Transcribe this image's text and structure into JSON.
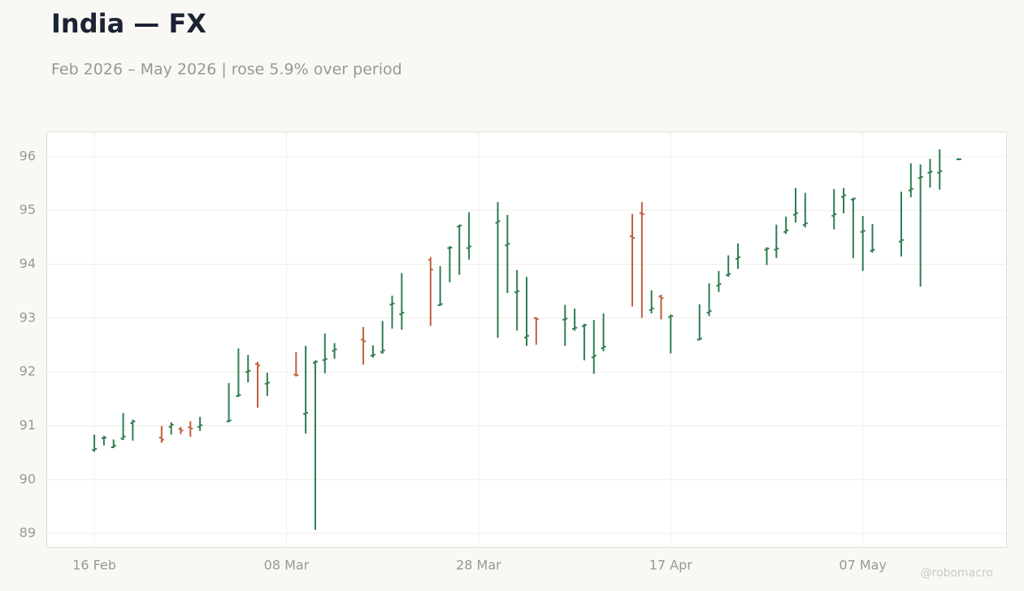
{
  "chart_data": {
    "type": "ohlc",
    "title": "India — FX",
    "subtitle": "Feb 2026 – May 2026 | rose 5.9% over period",
    "watermark": "@robomacro",
    "up_color": "#2e7d4f",
    "down_color": "#c0603e",
    "grid": true,
    "xlim": [
      "2026-02-11",
      "2026-05-22"
    ],
    "xticks": [
      {
        "value": "2026-02-16",
        "label": "16 Feb"
      },
      {
        "value": "2026-03-08",
        "label": "08 Mar"
      },
      {
        "value": "2026-03-28",
        "label": "28 Mar"
      },
      {
        "value": "2026-04-17",
        "label": "17 Apr"
      },
      {
        "value": "2026-05-07",
        "label": "07 May"
      }
    ],
    "ylim": [
      88.73,
      96.45
    ],
    "yticks": [
      89,
      90,
      91,
      92,
      93,
      94,
      95,
      96
    ],
    "x": [
      "2026-02-16",
      "2026-02-17",
      "2026-02-18",
      "2026-02-19",
      "2026-02-20",
      "2026-02-23",
      "2026-02-24",
      "2026-02-25",
      "2026-02-26",
      "2026-02-27",
      "2026-03-02",
      "2026-03-03",
      "2026-03-04",
      "2026-03-05",
      "2026-03-06",
      "2026-03-09",
      "2026-03-10",
      "2026-03-11",
      "2026-03-12",
      "2026-03-13",
      "2026-03-16",
      "2026-03-17",
      "2026-03-18",
      "2026-03-19",
      "2026-03-20",
      "2026-03-23",
      "2026-03-24",
      "2026-03-25",
      "2026-03-26",
      "2026-03-27",
      "2026-03-30",
      "2026-03-31",
      "2026-04-01",
      "2026-04-02",
      "2026-04-03",
      "2026-04-06",
      "2026-04-07",
      "2026-04-08",
      "2026-04-09",
      "2026-04-10",
      "2026-04-13",
      "2026-04-14",
      "2026-04-15",
      "2026-04-16",
      "2026-04-17",
      "2026-04-20",
      "2026-04-21",
      "2026-04-22",
      "2026-04-23",
      "2026-04-24",
      "2026-04-27",
      "2026-04-28",
      "2026-04-29",
      "2026-04-30",
      "2026-05-01",
      "2026-05-04",
      "2026-05-05",
      "2026-05-06",
      "2026-05-07",
      "2026-05-08",
      "2026-05-11",
      "2026-05-12",
      "2026-05-13",
      "2026-05-14",
      "2026-05-15",
      "2026-05-17"
    ],
    "open": [
      90.55,
      90.77,
      90.6,
      90.76,
      91.05,
      90.78,
      90.98,
      90.94,
      90.97,
      90.98,
      91.08,
      91.55,
      92.0,
      92.15,
      91.78,
      91.95,
      91.22,
      92.17,
      92.22,
      92.39,
      92.6,
      92.3,
      92.37,
      93.25,
      93.07,
      94.08,
      93.24,
      94.3,
      94.7,
      94.3,
      94.77,
      94.35,
      93.48,
      92.64,
      93.0,
      92.97,
      92.8,
      92.85,
      92.27,
      92.44,
      94.52,
      94.95,
      93.15,
      93.4,
      93.02,
      92.6,
      93.1,
      93.6,
      93.8,
      94.1,
      94.27,
      94.27,
      94.6,
      94.92,
      94.73,
      94.9,
      95.25,
      95.2,
      94.6,
      94.25,
      94.42,
      95.37,
      95.6,
      95.7,
      95.7,
      95.95
    ],
    "high": [
      90.82,
      90.8,
      90.73,
      91.22,
      91.1,
      90.98,
      91.05,
      90.96,
      91.07,
      91.15,
      91.78,
      92.42,
      92.3,
      92.17,
      91.97,
      92.35,
      92.47,
      92.2,
      92.7,
      92.52,
      92.82,
      92.48,
      92.93,
      93.4,
      93.82,
      94.12,
      93.95,
      94.32,
      94.72,
      94.95,
      95.14,
      94.9,
      93.88,
      93.75,
      93.0,
      93.23,
      93.16,
      92.88,
      92.95,
      93.07,
      94.92,
      95.14,
      93.5,
      93.42,
      93.05,
      93.24,
      93.63,
      93.86,
      94.15,
      94.37,
      94.3,
      94.72,
      94.87,
      95.4,
      95.31,
      95.38,
      95.4,
      95.22,
      94.88,
      94.73,
      95.33,
      95.86,
      95.84,
      95.94,
      96.12,
      95.95
    ],
    "low": [
      90.53,
      90.65,
      90.6,
      90.75,
      90.74,
      90.7,
      90.85,
      90.86,
      90.81,
      90.92,
      91.08,
      91.55,
      91.82,
      91.35,
      91.57,
      91.93,
      90.87,
      89.08,
      91.99,
      92.26,
      92.15,
      92.28,
      92.35,
      92.82,
      92.8,
      92.87,
      93.24,
      93.68,
      93.82,
      94.1,
      92.65,
      93.48,
      92.78,
      92.5,
      92.52,
      92.5,
      92.78,
      92.23,
      91.98,
      92.4,
      93.23,
      93.02,
      93.1,
      92.99,
      92.36,
      92.6,
      93.05,
      93.5,
      93.78,
      93.93,
      94.0,
      94.13,
      94.58,
      94.79,
      94.7,
      94.66,
      94.96,
      94.13,
      93.89,
      94.23,
      94.16,
      95.26,
      93.6,
      95.44,
      95.4,
      95.95
    ],
    "close": [
      90.57,
      90.78,
      90.63,
      90.8,
      91.08,
      90.74,
      91.02,
      90.91,
      90.95,
      91.01,
      91.1,
      91.57,
      92.02,
      92.12,
      91.8,
      91.94,
      91.24,
      92.19,
      92.24,
      92.42,
      92.57,
      92.32,
      92.4,
      93.27,
      93.1,
      93.9,
      93.26,
      94.31,
      94.72,
      94.33,
      94.8,
      94.38,
      93.5,
      92.67,
      92.98,
      92.99,
      92.82,
      92.87,
      92.3,
      92.47,
      94.49,
      94.93,
      93.18,
      93.37,
      93.04,
      92.62,
      93.13,
      93.63,
      93.82,
      94.13,
      94.29,
      94.29,
      94.63,
      94.95,
      94.76,
      94.93,
      95.28,
      95.22,
      94.62,
      94.27,
      94.45,
      95.4,
      95.62,
      95.72,
      95.73,
      95.95
    ]
  }
}
